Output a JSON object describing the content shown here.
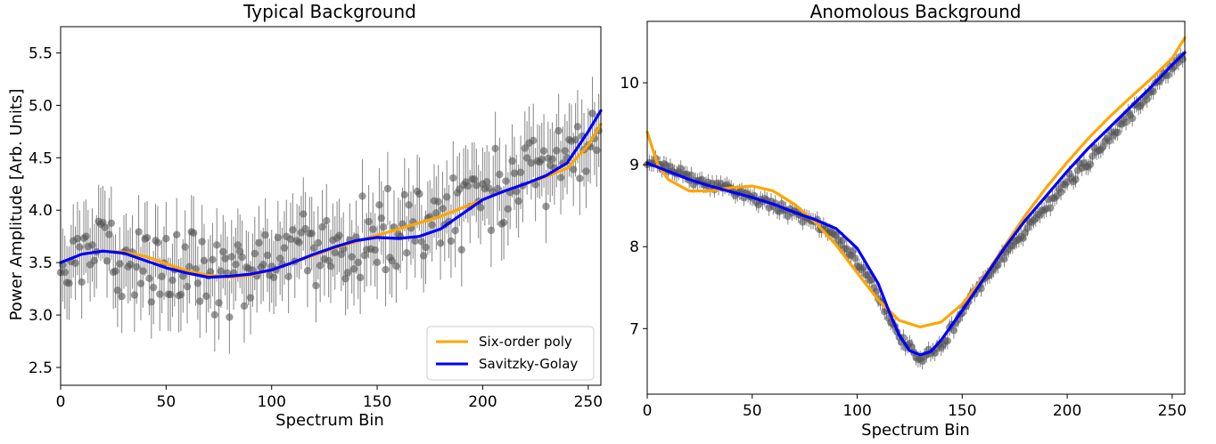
{
  "chart_data": [
    {
      "type": "scatter",
      "title": "Typical Background",
      "xlabel": "Spectrum Bin",
      "ylabel": "Power Amplitude [Arb. Units]",
      "xlim": [
        0,
        256
      ],
      "ylim": [
        2.33,
        5.75
      ],
      "xticks": [
        0,
        50,
        100,
        150,
        200,
        250
      ],
      "yticks": [
        2.5,
        3.0,
        3.5,
        4.0,
        4.5,
        5.0,
        5.5
      ],
      "xtick_labels": [
        "0",
        "50",
        "100",
        "150",
        "200",
        "250"
      ],
      "ytick_labels": [
        "2.5",
        "3.0",
        "3.5",
        "4.0",
        "4.5",
        "5.0",
        "5.5"
      ],
      "legend": {
        "placement": "lower-right",
        "entries": [
          {
            "label": "Six-order poly",
            "color": "#FFA500"
          },
          {
            "label": "Savitzky-Golay",
            "color": "#0000FF"
          }
        ]
      },
      "points": {
        "name": "",
        "color": "#555555",
        "n": 256,
        "error_half_width": 0.35,
        "anchors_x": [
          0,
          20,
          40,
          60,
          75,
          90,
          110,
          130,
          150,
          170,
          190,
          210,
          230,
          245,
          255
        ],
        "anchors_y": [
          3.5,
          3.55,
          3.45,
          3.4,
          3.35,
          3.4,
          3.5,
          3.65,
          3.75,
          3.85,
          4.05,
          4.25,
          4.35,
          4.6,
          4.8
        ],
        "scatter_amplitude": 0.45
      },
      "series": [
        {
          "name": "Six-order poly",
          "color": "#FFA500",
          "x": [
            0,
            10,
            20,
            30,
            40,
            50,
            60,
            70,
            80,
            90,
            100,
            110,
            120,
            130,
            140,
            150,
            160,
            170,
            180,
            190,
            200,
            210,
            220,
            230,
            240,
            250,
            256
          ],
          "y": [
            3.5,
            3.58,
            3.61,
            3.6,
            3.56,
            3.49,
            3.42,
            3.38,
            3.36,
            3.38,
            3.43,
            3.5,
            3.57,
            3.64,
            3.7,
            3.76,
            3.82,
            3.88,
            3.94,
            4.02,
            4.1,
            4.18,
            4.25,
            4.32,
            4.4,
            4.62,
            4.82
          ]
        },
        {
          "name": "Savitzky-Golay",
          "color": "#0000FF",
          "x": [
            0,
            10,
            20,
            30,
            40,
            50,
            60,
            70,
            80,
            90,
            100,
            110,
            120,
            130,
            140,
            150,
            160,
            170,
            180,
            190,
            200,
            210,
            220,
            230,
            240,
            250,
            256
          ],
          "y": [
            3.5,
            3.58,
            3.61,
            3.59,
            3.52,
            3.45,
            3.4,
            3.36,
            3.37,
            3.39,
            3.43,
            3.5,
            3.58,
            3.65,
            3.71,
            3.74,
            3.73,
            3.75,
            3.82,
            3.96,
            4.1,
            4.18,
            4.25,
            4.33,
            4.45,
            4.75,
            4.95
          ]
        }
      ]
    },
    {
      "type": "scatter",
      "title": "Anomolous Background",
      "xlabel": "Spectrum Bin",
      "ylabel": "",
      "xlim": [
        0,
        256
      ],
      "ylim": [
        6.2,
        10.75
      ],
      "xticks": [
        0,
        50,
        100,
        150,
        200,
        250
      ],
      "yticks": [
        7,
        8,
        9,
        10
      ],
      "xtick_labels": [
        "0",
        "50",
        "100",
        "150",
        "200",
        "250"
      ],
      "ytick_labels": [
        "7",
        "8",
        "9",
        "10"
      ],
      "points": {
        "name": "",
        "color": "#555555",
        "n": 256,
        "error_half_width": 0.1,
        "anchors_x": [
          0,
          20,
          40,
          60,
          80,
          95,
          110,
          120,
          130,
          140,
          150,
          170,
          190,
          210,
          230,
          250,
          255
        ],
        "anchors_y": [
          9.05,
          8.85,
          8.7,
          8.5,
          8.3,
          8.0,
          7.4,
          6.9,
          6.65,
          6.8,
          7.2,
          7.9,
          8.5,
          9.05,
          9.6,
          10.2,
          10.35
        ],
        "scatter_amplitude": 0.09
      },
      "series": [
        {
          "name": "Six-order poly",
          "color": "#FFA500",
          "x": [
            0,
            5,
            10,
            20,
            30,
            40,
            50,
            60,
            70,
            80,
            90,
            100,
            110,
            120,
            130,
            140,
            150,
            160,
            170,
            180,
            190,
            200,
            210,
            220,
            230,
            240,
            250,
            256
          ],
          "y": [
            9.4,
            9.0,
            8.82,
            8.68,
            8.68,
            8.72,
            8.74,
            8.68,
            8.52,
            8.3,
            8.02,
            7.68,
            7.35,
            7.1,
            7.02,
            7.08,
            7.3,
            7.62,
            8.0,
            8.38,
            8.72,
            9.03,
            9.32,
            9.58,
            9.82,
            10.05,
            10.3,
            10.55
          ]
        },
        {
          "name": "Savitzky-Golay",
          "color": "#0000FF",
          "x": [
            0,
            10,
            20,
            30,
            40,
            50,
            60,
            70,
            80,
            90,
            100,
            110,
            115,
            120,
            125,
            130,
            135,
            140,
            150,
            160,
            170,
            180,
            190,
            200,
            210,
            220,
            230,
            240,
            250,
            256
          ],
          "y": [
            9.02,
            8.92,
            8.82,
            8.74,
            8.67,
            8.6,
            8.52,
            8.42,
            8.33,
            8.22,
            7.98,
            7.55,
            7.22,
            6.92,
            6.73,
            6.68,
            6.72,
            6.86,
            7.22,
            7.6,
            7.98,
            8.32,
            8.62,
            8.92,
            9.2,
            9.45,
            9.7,
            9.95,
            10.22,
            10.37
          ]
        }
      ]
    }
  ]
}
